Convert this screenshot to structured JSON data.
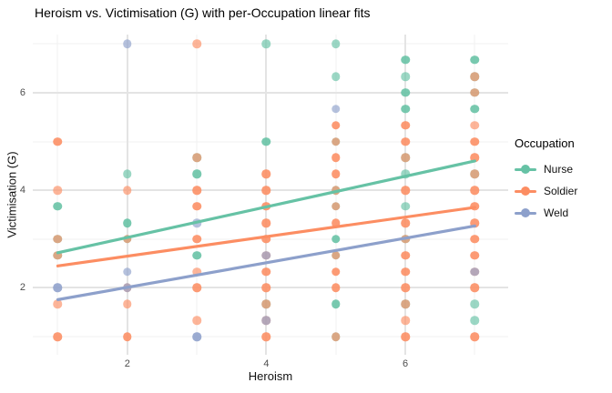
{
  "chart_data": {
    "type": "scatter",
    "title": "Heroism vs. Victimisation (G) with per-Occupation linear fits",
    "xlabel": "Heroism",
    "ylabel": "Victimisation (G)",
    "xlim": [
      0.64,
      7.48
    ],
    "ylim": [
      0.63,
      7.19
    ],
    "x_ticks": [
      2,
      4,
      6
    ],
    "y_ticks": [
      2,
      4,
      6
    ],
    "x_grid_major": [
      2,
      4,
      6
    ],
    "x_grid_minor": [
      1,
      3,
      5,
      7
    ],
    "y_grid_major": [
      2,
      4,
      6
    ],
    "y_grid_minor": [
      1,
      3,
      5,
      7
    ],
    "grid": "on",
    "point_alpha": 0.65,
    "colors": {
      "Nurse": "#66C2A5",
      "Soldier": "#FC8D62",
      "Weld": "#8DA0CB"
    },
    "legend": {
      "title": "Occupation",
      "position": "right",
      "entries": [
        {
          "label": "Nurse",
          "color": "#66C2A5"
        },
        {
          "label": "Soldier",
          "color": "#FC8D62"
        },
        {
          "label": "Weld",
          "color": "#8DA0CB"
        }
      ]
    },
    "fits": [
      {
        "occupation": "Nurse",
        "x": [
          1,
          7
        ],
        "y": [
          2.72,
          4.6
        ]
      },
      {
        "occupation": "Soldier",
        "x": [
          1,
          7
        ],
        "y": [
          2.45,
          3.65
        ]
      },
      {
        "occupation": "Weld",
        "x": [
          1,
          7
        ],
        "y": [
          1.76,
          3.27
        ]
      }
    ],
    "points": [
      {
        "x": 1,
        "y": 5.0,
        "by": [
          "Soldier",
          "Soldier"
        ]
      },
      {
        "x": 1,
        "y": 4.0,
        "by": [
          "Soldier"
        ]
      },
      {
        "x": 1,
        "y": 3.67,
        "by": [
          "Nurse",
          "Nurse"
        ]
      },
      {
        "x": 1,
        "y": 3.0,
        "by": [
          "Nurse",
          "Soldier"
        ]
      },
      {
        "x": 1,
        "y": 2.67,
        "by": [
          "Nurse",
          "Soldier"
        ]
      },
      {
        "x": 1,
        "y": 2.0,
        "by": [
          "Weld",
          "Weld"
        ]
      },
      {
        "x": 1,
        "y": 1.67,
        "by": [
          "Soldier"
        ]
      },
      {
        "x": 1,
        "y": 1.0,
        "by": [
          "Soldier",
          "Soldier"
        ]
      },
      {
        "x": 2,
        "y": 7.0,
        "by": [
          "Weld"
        ]
      },
      {
        "x": 2,
        "y": 4.33,
        "by": [
          "Nurse"
        ]
      },
      {
        "x": 2,
        "y": 4.0,
        "by": [
          "Soldier"
        ]
      },
      {
        "x": 2,
        "y": 3.33,
        "by": [
          "Nurse",
          "Nurse"
        ]
      },
      {
        "x": 2,
        "y": 3.0,
        "by": [
          "Nurse",
          "Soldier"
        ]
      },
      {
        "x": 2,
        "y": 2.33,
        "by": [
          "Weld"
        ]
      },
      {
        "x": 2,
        "y": 2.0,
        "by": [
          "Soldier",
          "Weld"
        ]
      },
      {
        "x": 2,
        "y": 1.67,
        "by": [
          "Soldier"
        ]
      },
      {
        "x": 2,
        "y": 1.0,
        "by": [
          "Soldier",
          "Soldier"
        ]
      },
      {
        "x": 3,
        "y": 7.0,
        "by": [
          "Soldier"
        ]
      },
      {
        "x": 3,
        "y": 4.67,
        "by": [
          "Nurse",
          "Soldier"
        ]
      },
      {
        "x": 3,
        "y": 4.33,
        "by": [
          "Nurse",
          "Nurse"
        ]
      },
      {
        "x": 3,
        "y": 4.0,
        "by": [
          "Soldier",
          "Soldier"
        ]
      },
      {
        "x": 3,
        "y": 3.67,
        "by": [
          "Soldier",
          "Soldier"
        ]
      },
      {
        "x": 3,
        "y": 3.33,
        "by": [
          "Weld"
        ]
      },
      {
        "x": 3,
        "y": 3.0,
        "by": [
          "Soldier",
          "Soldier"
        ]
      },
      {
        "x": 3,
        "y": 2.67,
        "by": [
          "Nurse",
          "Nurse"
        ]
      },
      {
        "x": 3,
        "y": 2.33,
        "by": [
          "Soldier"
        ]
      },
      {
        "x": 3,
        "y": 2.0,
        "by": [
          "Soldier",
          "Soldier"
        ]
      },
      {
        "x": 3,
        "y": 1.33,
        "by": [
          "Soldier"
        ]
      },
      {
        "x": 3,
        "y": 1.0,
        "by": [
          "Weld",
          "Weld"
        ]
      },
      {
        "x": 4,
        "y": 7.0,
        "by": [
          "Nurse"
        ]
      },
      {
        "x": 4,
        "y": 5.0,
        "by": [
          "Nurse",
          "Nurse"
        ]
      },
      {
        "x": 4,
        "y": 4.33,
        "by": [
          "Soldier",
          "Soldier"
        ]
      },
      {
        "x": 4,
        "y": 4.0,
        "by": [
          "Soldier",
          "Soldier"
        ]
      },
      {
        "x": 4,
        "y": 3.67,
        "by": [
          "Soldier",
          "Soldier"
        ]
      },
      {
        "x": 4,
        "y": 3.33,
        "by": [
          "Soldier",
          "Soldier"
        ]
      },
      {
        "x": 4,
        "y": 3.0,
        "by": [
          "Soldier",
          "Soldier"
        ]
      },
      {
        "x": 4,
        "y": 2.67,
        "by": [
          "Soldier",
          "Weld"
        ]
      },
      {
        "x": 4,
        "y": 2.33,
        "by": [
          "Soldier",
          "Soldier"
        ]
      },
      {
        "x": 4,
        "y": 2.0,
        "by": [
          "Soldier",
          "Soldier"
        ]
      },
      {
        "x": 4,
        "y": 1.67,
        "by": [
          "Nurse",
          "Soldier"
        ]
      },
      {
        "x": 4,
        "y": 1.33,
        "by": [
          "Soldier",
          "Weld"
        ]
      },
      {
        "x": 4,
        "y": 1.0,
        "by": [
          "Soldier",
          "Soldier"
        ]
      },
      {
        "x": 5,
        "y": 7.0,
        "by": [
          "Nurse"
        ]
      },
      {
        "x": 5,
        "y": 6.33,
        "by": [
          "Nurse"
        ]
      },
      {
        "x": 5,
        "y": 5.67,
        "by": [
          "Weld"
        ]
      },
      {
        "x": 5,
        "y": 5.33,
        "by": [
          "Soldier",
          "Soldier"
        ]
      },
      {
        "x": 5,
        "y": 5.0,
        "by": [
          "Nurse",
          "Soldier"
        ]
      },
      {
        "x": 5,
        "y": 4.67,
        "by": [
          "Soldier",
          "Soldier"
        ]
      },
      {
        "x": 5,
        "y": 4.33,
        "by": [
          "Soldier",
          "Soldier"
        ]
      },
      {
        "x": 5,
        "y": 4.0,
        "by": [
          "Nurse",
          "Soldier"
        ]
      },
      {
        "x": 5,
        "y": 3.67,
        "by": [
          "Nurse",
          "Soldier"
        ]
      },
      {
        "x": 5,
        "y": 3.33,
        "by": [
          "Soldier",
          "Soldier"
        ]
      },
      {
        "x": 5,
        "y": 3.0,
        "by": [
          "Nurse",
          "Nurse"
        ]
      },
      {
        "x": 5,
        "y": 2.67,
        "by": [
          "Nurse",
          "Soldier"
        ]
      },
      {
        "x": 5,
        "y": 2.33,
        "by": [
          "Soldier",
          "Soldier"
        ]
      },
      {
        "x": 5,
        "y": 2.0,
        "by": [
          "Soldier",
          "Soldier"
        ]
      },
      {
        "x": 5,
        "y": 1.67,
        "by": [
          "Nurse",
          "Nurse"
        ]
      },
      {
        "x": 5,
        "y": 1.0,
        "by": [
          "Nurse",
          "Soldier"
        ]
      },
      {
        "x": 6,
        "y": 6.67,
        "by": [
          "Nurse",
          "Nurse"
        ]
      },
      {
        "x": 6,
        "y": 6.33,
        "by": [
          "Nurse"
        ]
      },
      {
        "x": 6,
        "y": 6.0,
        "by": [
          "Nurse",
          "Nurse"
        ]
      },
      {
        "x": 6,
        "y": 5.67,
        "by": [
          "Nurse",
          "Nurse"
        ]
      },
      {
        "x": 6,
        "y": 5.33,
        "by": [
          "Soldier",
          "Soldier"
        ]
      },
      {
        "x": 6,
        "y": 5.0,
        "by": [
          "Soldier",
          "Soldier"
        ]
      },
      {
        "x": 6,
        "y": 4.67,
        "by": [
          "Nurse",
          "Soldier"
        ]
      },
      {
        "x": 6,
        "y": 4.33,
        "by": [
          "Nurse"
        ]
      },
      {
        "x": 6,
        "y": 4.0,
        "by": [
          "Soldier",
          "Soldier"
        ]
      },
      {
        "x": 6,
        "y": 3.67,
        "by": [
          "Nurse"
        ]
      },
      {
        "x": 6,
        "y": 3.33,
        "by": [
          "Soldier",
          "Soldier"
        ]
      },
      {
        "x": 6,
        "y": 3.0,
        "by": [
          "Nurse",
          "Soldier"
        ]
      },
      {
        "x": 6,
        "y": 2.67,
        "by": [
          "Soldier",
          "Soldier"
        ]
      },
      {
        "x": 6,
        "y": 2.33,
        "by": [
          "Soldier",
          "Soldier"
        ]
      },
      {
        "x": 6,
        "y": 2.0,
        "by": [
          "Soldier",
          "Soldier"
        ]
      },
      {
        "x": 6,
        "y": 1.67,
        "by": [
          "Nurse",
          "Soldier"
        ]
      },
      {
        "x": 6,
        "y": 1.33,
        "by": [
          "Soldier"
        ]
      },
      {
        "x": 6,
        "y": 1.0,
        "by": [
          "Soldier",
          "Soldier"
        ]
      },
      {
        "x": 7,
        "y": 6.67,
        "by": [
          "Nurse",
          "Nurse"
        ]
      },
      {
        "x": 7,
        "y": 6.33,
        "by": [
          "Nurse",
          "Soldier"
        ]
      },
      {
        "x": 7,
        "y": 6.0,
        "by": [
          "Nurse",
          "Soldier"
        ]
      },
      {
        "x": 7,
        "y": 5.67,
        "by": [
          "Nurse",
          "Nurse"
        ]
      },
      {
        "x": 7,
        "y": 5.33,
        "by": [
          "Soldier"
        ]
      },
      {
        "x": 7,
        "y": 5.0,
        "by": [
          "Soldier",
          "Soldier"
        ]
      },
      {
        "x": 7,
        "y": 4.67,
        "by": [
          "Soldier",
          "Soldier"
        ]
      },
      {
        "x": 7,
        "y": 4.33,
        "by": [
          "Nurse",
          "Soldier"
        ]
      },
      {
        "x": 7,
        "y": 4.0,
        "by": [
          "Soldier",
          "Soldier"
        ]
      },
      {
        "x": 7,
        "y": 3.67,
        "by": [
          "Soldier",
          "Soldier"
        ]
      },
      {
        "x": 7,
        "y": 3.33,
        "by": [
          "Soldier",
          "Soldier"
        ]
      },
      {
        "x": 7,
        "y": 3.0,
        "by": [
          "Soldier",
          "Soldier"
        ]
      },
      {
        "x": 7,
        "y": 2.67,
        "by": [
          "Soldier",
          "Soldier"
        ]
      },
      {
        "x": 7,
        "y": 2.33,
        "by": [
          "Soldier",
          "Weld"
        ]
      },
      {
        "x": 7,
        "y": 2.0,
        "by": [
          "Soldier",
          "Soldier"
        ]
      },
      {
        "x": 7,
        "y": 1.67,
        "by": [
          "Nurse"
        ]
      },
      {
        "x": 7,
        "y": 1.33,
        "by": [
          "Nurse"
        ]
      },
      {
        "x": 7,
        "y": 1.0,
        "by": [
          "Soldier",
          "Soldier"
        ]
      }
    ]
  }
}
